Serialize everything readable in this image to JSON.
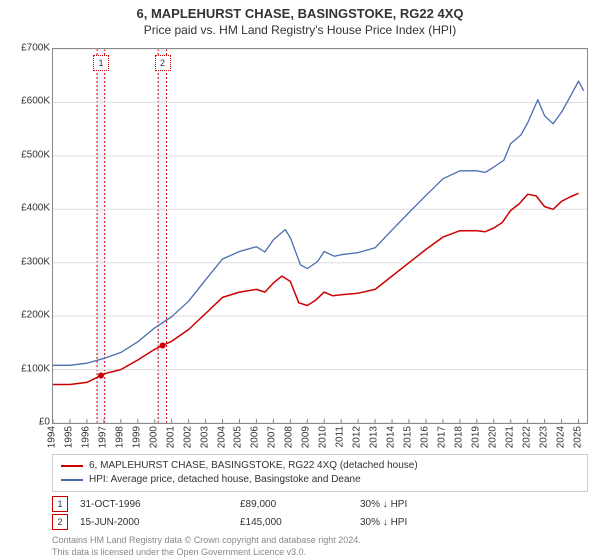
{
  "title": "6, MAPLEHURST CHASE, BASINGSTOKE, RG22 4XQ",
  "subtitle": "Price paid vs. HM Land Registry's House Price Index (HPI)",
  "chart": {
    "type": "line",
    "x_start_year": 1994,
    "x_end_year": 2025.5,
    "xtick_step": 1,
    "ylim": [
      0,
      700000
    ],
    "ytick_step": 100000,
    "ytick_labels": [
      "£0",
      "£100K",
      "£200K",
      "£300K",
      "£400K",
      "£500K",
      "£600K",
      "£700K"
    ],
    "xtick_labels": [
      "1994",
      "1995",
      "1996",
      "1997",
      "1998",
      "1999",
      "2000",
      "2001",
      "2002",
      "2003",
      "2004",
      "2005",
      "2006",
      "2007",
      "2008",
      "2009",
      "2010",
      "2011",
      "2012",
      "2013",
      "2014",
      "2015",
      "2016",
      "2017",
      "2018",
      "2019",
      "2020",
      "2021",
      "2022",
      "2023",
      "2024",
      "2025"
    ],
    "grid_color": "#dddddd",
    "axis_color": "#888888",
    "background_color": "#ffffff",
    "dotted_band_color": "#f0f3fa",
    "series": [
      {
        "name": "red",
        "label": "6, MAPLEHURST CHASE, BASINGSTOKE, RG22 4XQ (detached house)",
        "color": "#cc0000",
        "width": 1.5,
        "values": [
          [
            1994,
            72000
          ],
          [
            1995,
            72000
          ],
          [
            1996,
            76000
          ],
          [
            1996.83,
            89000
          ],
          [
            1997,
            92000
          ],
          [
            1998,
            100000
          ],
          [
            1999,
            118000
          ],
          [
            2000,
            138000
          ],
          [
            2000.46,
            145000
          ],
          [
            2001,
            153000
          ],
          [
            2002,
            175000
          ],
          [
            2003,
            205000
          ],
          [
            2004,
            235000
          ],
          [
            2005,
            245000
          ],
          [
            2006,
            250000
          ],
          [
            2006.5,
            245000
          ],
          [
            2007,
            262000
          ],
          [
            2007.5,
            275000
          ],
          [
            2008,
            265000
          ],
          [
            2008.5,
            225000
          ],
          [
            2009,
            220000
          ],
          [
            2009.5,
            230000
          ],
          [
            2010,
            245000
          ],
          [
            2010.5,
            238000
          ],
          [
            2011,
            240000
          ],
          [
            2012,
            243000
          ],
          [
            2013,
            250000
          ],
          [
            2014,
            275000
          ],
          [
            2015,
            300000
          ],
          [
            2016,
            325000
          ],
          [
            2017,
            348000
          ],
          [
            2018,
            360000
          ],
          [
            2019,
            360000
          ],
          [
            2019.5,
            358000
          ],
          [
            2020,
            365000
          ],
          [
            2020.5,
            375000
          ],
          [
            2021,
            398000
          ],
          [
            2021.5,
            410000
          ],
          [
            2022,
            428000
          ],
          [
            2022.5,
            425000
          ],
          [
            2023,
            405000
          ],
          [
            2023.5,
            400000
          ],
          [
            2024,
            415000
          ],
          [
            2024.5,
            423000
          ],
          [
            2025,
            430000
          ]
        ]
      },
      {
        "name": "blue",
        "label": "HPI: Average price, detached house, Basingstoke and Deane",
        "color": "#4a6db0",
        "width": 1.3,
        "values": [
          [
            1994,
            108000
          ],
          [
            1995,
            108000
          ],
          [
            1996,
            112000
          ],
          [
            1997,
            121000
          ],
          [
            1998,
            132000
          ],
          [
            1999,
            152000
          ],
          [
            2000,
            178000
          ],
          [
            2001,
            199000
          ],
          [
            2002,
            228000
          ],
          [
            2003,
            268000
          ],
          [
            2004,
            307000
          ],
          [
            2005,
            321000
          ],
          [
            2006,
            330000
          ],
          [
            2006.5,
            320000
          ],
          [
            2007,
            343000
          ],
          [
            2007.7,
            362000
          ],
          [
            2008,
            347000
          ],
          [
            2008.6,
            296000
          ],
          [
            2009,
            289000
          ],
          [
            2009.6,
            302000
          ],
          [
            2010,
            321000
          ],
          [
            2010.6,
            312000
          ],
          [
            2011,
            315000
          ],
          [
            2012,
            319000
          ],
          [
            2013,
            328000
          ],
          [
            2014,
            361000
          ],
          [
            2015,
            394000
          ],
          [
            2016,
            426000
          ],
          [
            2017,
            457000
          ],
          [
            2018,
            472000
          ],
          [
            2019,
            472000
          ],
          [
            2019.5,
            469000
          ],
          [
            2020,
            479000
          ],
          [
            2020.6,
            492000
          ],
          [
            2021,
            523000
          ],
          [
            2021.6,
            539000
          ],
          [
            2022,
            562000
          ],
          [
            2022.6,
            605000
          ],
          [
            2023,
            575000
          ],
          [
            2023.5,
            560000
          ],
          [
            2024,
            582000
          ],
          [
            2024.5,
            610000
          ],
          [
            2025,
            640000
          ],
          [
            2025.3,
            622000
          ]
        ]
      }
    ],
    "sale_markers": [
      {
        "num": "1",
        "year": 1996.83,
        "price": 89000,
        "color": "#cc0000"
      },
      {
        "num": "2",
        "year": 2000.46,
        "price": 145000,
        "color": "#cc0000"
      }
    ],
    "vertical_dotted_bands": [
      {
        "start_year": 1996.6,
        "end_year": 1997.05,
        "color": "#cc0000"
      },
      {
        "start_year": 2000.2,
        "end_year": 2000.7,
        "color": "#cc0000"
      }
    ]
  },
  "legend": {
    "items": [
      {
        "color": "#cc0000",
        "label": "6, MAPLEHURST CHASE, BASINGSTOKE, RG22 4XQ (detached house)"
      },
      {
        "color": "#4a6db0",
        "label": "HPI: Average price, detached house, Basingstoke and Deane"
      }
    ]
  },
  "marker_table": [
    {
      "num": "1",
      "color": "#cc0000",
      "date": "31-OCT-1996",
      "price": "£89,000",
      "rel": "30% ↓ HPI"
    },
    {
      "num": "2",
      "color": "#cc0000",
      "date": "15-JUN-2000",
      "price": "£145,000",
      "rel": "30% ↓ HPI"
    }
  ],
  "disclaimer_line1": "Contains HM Land Registry data © Crown copyright and database right 2024.",
  "disclaimer_line2": "This data is licensed under the Open Government Licence v3.0."
}
